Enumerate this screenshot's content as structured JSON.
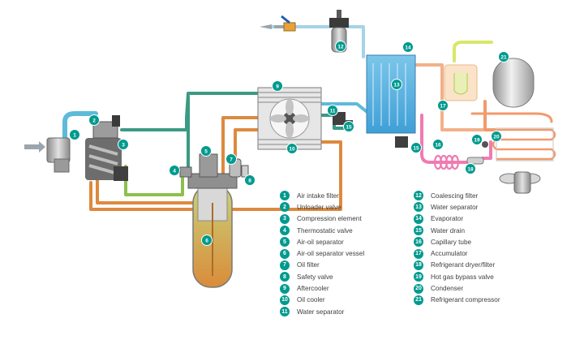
{
  "colors": {
    "marker": "#009a8e",
    "air_intake": "#5dbbd9",
    "oil_hot": "#dd8a3e",
    "oil_cooled": "#8cc04b",
    "air_oil_mix": "#3a9a82",
    "dry_air": "#a5d3e8",
    "refrigerant_hot": "#f29a6c",
    "refrigerant_liquid": "#f07bb1",
    "refrigerant_cold": "#d8e76a",
    "metal_dark": "#5a5a5a",
    "metal_light": "#bfbfbf"
  },
  "legend": {
    "left": [
      {
        "num": "1",
        "label": "Air intake filter"
      },
      {
        "num": "2",
        "label": "Unloader valve"
      },
      {
        "num": "3",
        "label": "Compression element"
      },
      {
        "num": "4",
        "label": "Thermostatic valve"
      },
      {
        "num": "5",
        "label": "Air-oil separator"
      },
      {
        "num": "6",
        "label": "Air-oil separator vessel"
      },
      {
        "num": "7",
        "label": "Oil filter"
      },
      {
        "num": "8",
        "label": "Safety valve"
      },
      {
        "num": "9",
        "label": "Aftercooler"
      },
      {
        "num": "10",
        "label": "Oil cooler"
      },
      {
        "num": "11",
        "label": "Water separator"
      }
    ],
    "right": [
      {
        "num": "12",
        "label": "Coalescing filter"
      },
      {
        "num": "13",
        "label": "Water separator"
      },
      {
        "num": "14",
        "label": "Evaporator"
      },
      {
        "num": "15",
        "label": "Water drain"
      },
      {
        "num": "16",
        "label": "Capillary tube"
      },
      {
        "num": "17",
        "label": "Accumulator"
      },
      {
        "num": "18",
        "label": "Refrigerant dryer/filter"
      },
      {
        "num": "19",
        "label": "Hot gas bypass valve"
      },
      {
        "num": "20",
        "label": "Condenser"
      },
      {
        "num": "21",
        "label": "Refrigerant compressor"
      }
    ]
  },
  "callouts": [
    "1",
    "2",
    "3",
    "4",
    "5",
    "6",
    "7",
    "8",
    "9",
    "10",
    "11",
    "12",
    "13",
    "14",
    "15",
    "15",
    "16",
    "17",
    "18",
    "19",
    "20",
    "21"
  ]
}
